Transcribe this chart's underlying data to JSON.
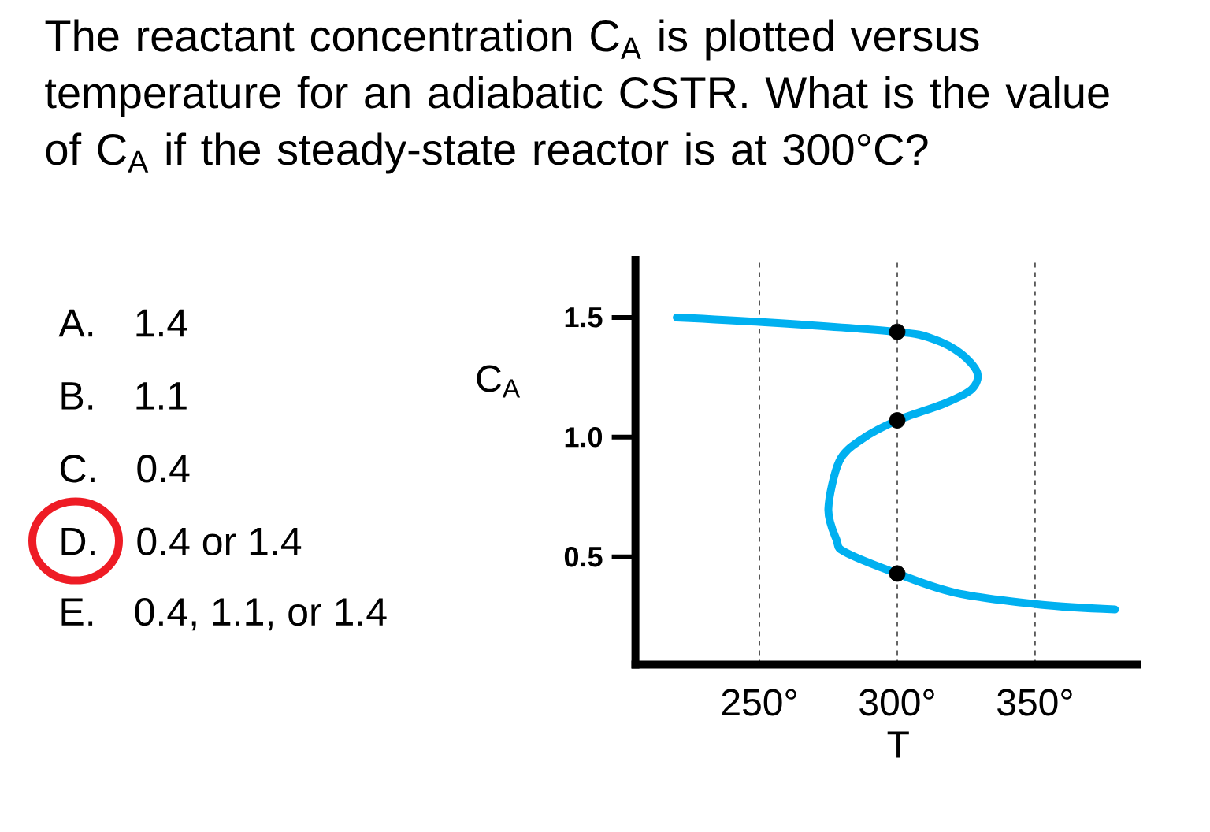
{
  "chart_data": {
    "type": "line",
    "title": "The reactant concentration C$_{A}$ is plotted versus temperature for an adiabatic CSTR. What is the value of C$_{A}$ if the steady-state reactor is at 300°C?",
    "xlabel": "T",
    "ylabel": "C$_{A}$",
    "annotations": [
      "A. 1.4",
      "B. 1.1",
      "C. 0.4",
      "D. 0.4 or 1.4",
      "E. 0.4, 1.1, or 1.4"
    ],
    "series": [
      {
        "color": "#00b0f0",
        "x": [
          220,
          252,
          300,
          313,
          323,
          329,
          327,
          317,
          300,
          287,
          279,
          275,
          278,
          281,
          300,
          321,
          352,
          379
        ],
        "values": [
          1.5,
          1.48,
          1.44,
          1.41,
          1.35,
          1.27,
          1.2,
          1.14,
          1.07,
          0.99,
          0.9,
          0.7,
          0.57,
          0.52,
          0.43,
          0.35,
          0.3,
          0.28
        ]
      },
      {
        "type": "scatter",
        "color": "#000000",
        "marker": "circle",
        "x": [
          300,
          300,
          300
        ],
        "values": [
          1.44,
          1.07,
          0.43
        ]
      }
    ],
    "xlim": [
      205,
      387
    ],
    "ylim": [
      0.05,
      1.74
    ],
    "xticks": [
      {
        "value": 250,
        "label": "250°"
      },
      {
        "value": 300,
        "label": "300°"
      },
      {
        "value": 350,
        "label": "350°"
      }
    ],
    "yticks": [
      0.5,
      {
        "value": 1,
        "label": "1.0"
      },
      1.5
    ],
    "grid": "x"
  }
}
